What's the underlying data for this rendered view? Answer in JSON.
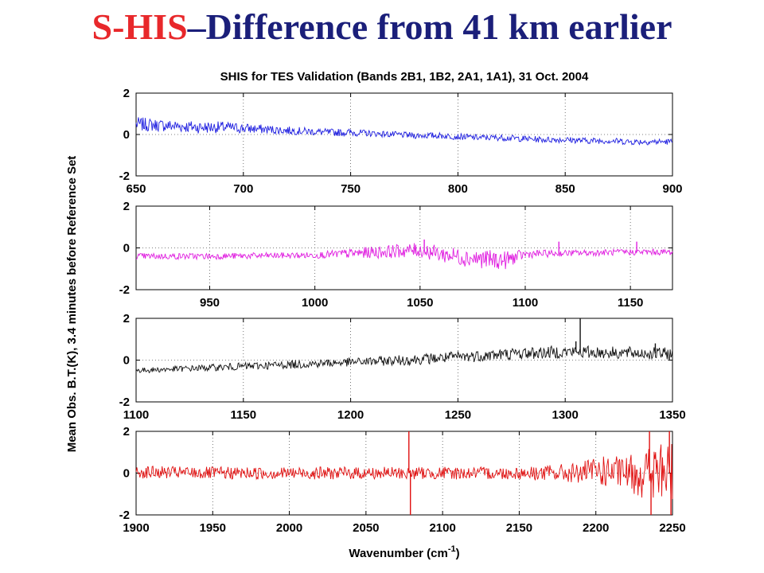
{
  "slide": {
    "title_part1": "S-HIS",
    "title_part2": "–Difference from 41 km earlier",
    "title_color1": "#e8282b",
    "title_color2": "#1b1f7a"
  },
  "chart_data": {
    "type": "line",
    "title": "SHIS for TES Validation (Bands 2B1, 1B2, 2A1, 1A1), 31 Oct. 2004",
    "ylabel": "Mean Obs. B.T.(K), 3.4 minutes before Reference Set",
    "xlabel": "Wavenumber (cm",
    "xlabel_sup": "-1",
    "xlabel_suffix": ")",
    "grid": "dotted",
    "legend": "none",
    "panels": [
      {
        "color": "#2020e0",
        "xlim": [
          650,
          900
        ],
        "ylim": [
          -2,
          2
        ],
        "xticks": [
          "650",
          "700",
          "750",
          "800",
          "850",
          "900"
        ],
        "yticks": [
          "2",
          "0",
          "-2"
        ],
        "series": {
          "x": [
            650,
            660,
            670,
            680,
            690,
            700,
            710,
            720,
            730,
            740,
            750,
            760,
            770,
            780,
            790,
            800,
            810,
            820,
            830,
            840,
            850,
            860,
            870,
            880,
            890,
            900
          ],
          "y": [
            0.5,
            0.45,
            0.4,
            0.35,
            0.35,
            0.3,
            0.25,
            0.2,
            0.15,
            0.1,
            0.1,
            0.05,
            0.0,
            -0.05,
            -0.05,
            -0.1,
            -0.15,
            -0.15,
            -0.2,
            -0.25,
            -0.25,
            -0.3,
            -0.3,
            -0.35,
            -0.35,
            -0.35
          ],
          "noise": [
            0.35,
            0.3,
            0.3,
            0.3,
            0.28,
            0.25,
            0.22,
            0.2,
            0.18,
            0.18,
            0.18,
            0.15,
            0.15,
            0.15,
            0.15,
            0.15,
            0.15,
            0.15,
            0.15,
            0.15,
            0.15,
            0.15,
            0.15,
            0.15,
            0.15,
            0.15
          ],
          "spikes": []
        }
      },
      {
        "color": "#e020e0",
        "xlim": [
          915,
          1170
        ],
        "ylim": [
          -2,
          2
        ],
        "xticks": [
          "950",
          "1000",
          "1050",
          "1100",
          "1150"
        ],
        "yticks": [
          "2",
          "0",
          "-2"
        ],
        "series": {
          "x": [
            915,
            950,
            1000,
            1030,
            1050,
            1060,
            1075,
            1090,
            1100,
            1120,
            1150,
            1170
          ],
          "y": [
            -0.4,
            -0.4,
            -0.35,
            -0.2,
            -0.1,
            -0.3,
            -0.5,
            -0.6,
            -0.3,
            -0.25,
            -0.2,
            -0.2
          ],
          "noise": [
            0.15,
            0.15,
            0.15,
            0.3,
            0.35,
            0.4,
            0.45,
            0.45,
            0.2,
            0.15,
            0.15,
            0.15
          ],
          "spikes": [
            [
              1052,
              0.4
            ],
            [
              1116,
              0.3
            ],
            [
              1153,
              0.3
            ]
          ]
        }
      },
      {
        "color": "#111111",
        "xlim": [
          1100,
          1350
        ],
        "ylim": [
          -2,
          2
        ],
        "xticks": [
          "1100",
          "1150",
          "1200",
          "1250",
          "1300",
          "1350"
        ],
        "yticks": [
          "2",
          "0",
          "-2"
        ],
        "series": {
          "x": [
            1100,
            1125,
            1150,
            1175,
            1200,
            1225,
            1250,
            1275,
            1300,
            1325,
            1350
          ],
          "y": [
            -0.5,
            -0.4,
            -0.3,
            -0.2,
            -0.1,
            0.0,
            0.15,
            0.3,
            0.4,
            0.35,
            0.3
          ],
          "noise": [
            0.12,
            0.15,
            0.18,
            0.2,
            0.2,
            0.25,
            0.28,
            0.3,
            0.3,
            0.3,
            0.3
          ],
          "spikes": [
            [
              1307,
              2.0
            ],
            [
              1305,
              0.9
            ],
            [
              1342,
              0.8
            ]
          ]
        }
      },
      {
        "color": "#e01010",
        "xlim": [
          1900,
          2250
        ],
        "ylim": [
          -2,
          2
        ],
        "xticks": [
          "1900",
          "1950",
          "2000",
          "2050",
          "2100",
          "2150",
          "2200",
          "2250"
        ],
        "yticks": [
          "2",
          "0",
          "-2"
        ],
        "series": {
          "x": [
            1900,
            1950,
            2000,
            2050,
            2100,
            2150,
            2190,
            2200,
            2220,
            2235,
            2250
          ],
          "y": [
            0.05,
            0.0,
            0.0,
            0.0,
            0.0,
            0.0,
            0.0,
            0.1,
            0.0,
            0.0,
            0.0
          ],
          "noise": [
            0.3,
            0.3,
            0.3,
            0.3,
            0.3,
            0.3,
            0.5,
            0.7,
            0.8,
            1.4,
            1.6
          ],
          "spikes": [
            [
              2078,
              2.0
            ],
            [
              2079,
              -2.0
            ],
            [
              2235,
              2.0
            ],
            [
              2236,
              -2.0
            ],
            [
              2248,
              2.0
            ],
            [
              2249,
              -2.0
            ]
          ]
        }
      }
    ]
  }
}
